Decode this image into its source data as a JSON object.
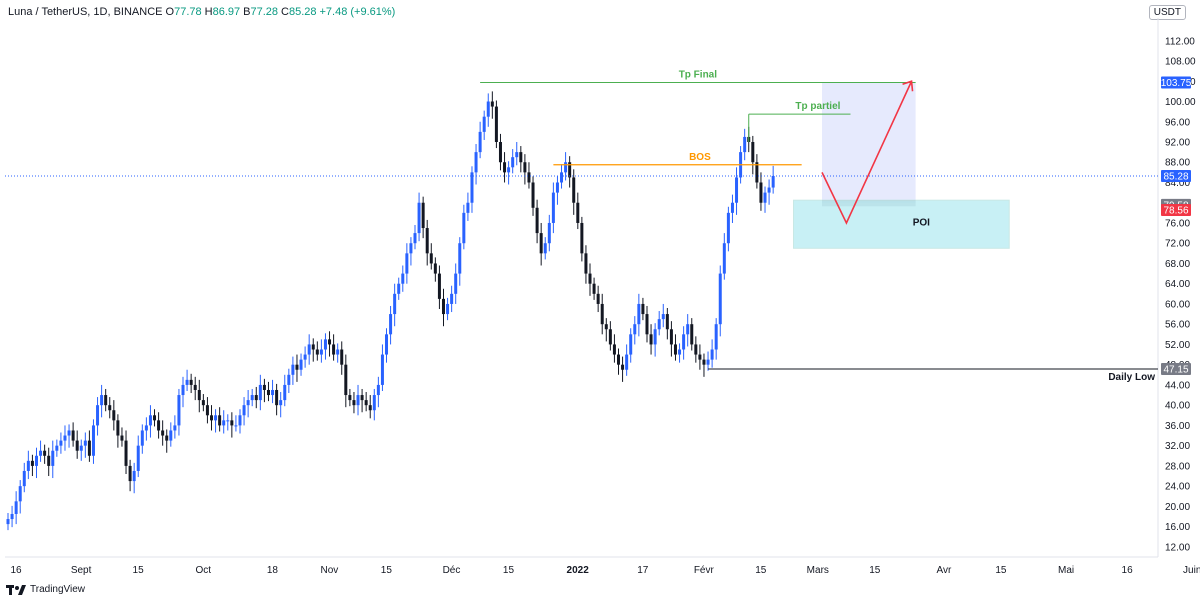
{
  "header": {
    "symbol": "Luna / TetherUS, 1D, BINANCE",
    "ohlc": [
      {
        "k": "O",
        "v": "77.78"
      },
      {
        "k": "H",
        "v": "86.97"
      },
      {
        "k": "B",
        "v": "77.28"
      },
      {
        "k": "C",
        "v": "85.28"
      },
      {
        "k": "",
        "v": "+7.48 (+9.61%)"
      }
    ]
  },
  "currency": "USDT",
  "brand": "TradingView",
  "colors": {
    "up": "#2962ff",
    "down": "#131722",
    "green": "#4caf50",
    "orange": "#ff9800",
    "red": "#f23645",
    "poi": "#b2ebf2",
    "target_zone": "#e3e8fd"
  },
  "chart_data": {
    "type": "candlestick",
    "y_axis": {
      "min": 10,
      "max": 116,
      "ticks": [
        12,
        16,
        20,
        24,
        28,
        32,
        36,
        40,
        44,
        48,
        52,
        56,
        60,
        64,
        68,
        72,
        76,
        80,
        84,
        88,
        92,
        96,
        100,
        104,
        108,
        112
      ]
    },
    "x_axis": {
      "labels": [
        {
          "t": "16",
          "d": 0
        },
        {
          "t": "Sept",
          "d": 16
        },
        {
          "t": "15",
          "d": 30
        },
        {
          "t": "Oct",
          "d": 46
        },
        {
          "t": "18",
          "d": 63
        },
        {
          "t": "Nov",
          "d": 77
        },
        {
          "t": "15",
          "d": 91
        },
        {
          "t": "Déc",
          "d": 107
        },
        {
          "t": "15",
          "d": 121
        },
        {
          "t": "2022",
          "d": 138
        },
        {
          "t": "17",
          "d": 154
        },
        {
          "t": "Févr",
          "d": 169
        },
        {
          "t": "15",
          "d": 183
        },
        {
          "t": "Mars",
          "d": 197
        },
        {
          "t": "15",
          "d": 211
        },
        {
          "t": "Avr",
          "d": 228
        },
        {
          "t": "15",
          "d": 242
        },
        {
          "t": "Mai",
          "d": 258
        },
        {
          "t": "16",
          "d": 273
        },
        {
          "t": "Juin",
          "d": 289
        }
      ]
    },
    "candles_note": "close prices per day, day index 0 = Aug 16",
    "closes": [
      17.5,
      18.5,
      21,
      24,
      27,
      29,
      28,
      30,
      31,
      30,
      28,
      31,
      32,
      33,
      34,
      35,
      33,
      31,
      32,
      33,
      30,
      36,
      40,
      42,
      40,
      39,
      37,
      34,
      33,
      28,
      25,
      27,
      32,
      35,
      36,
      38,
      37,
      35,
      34,
      33,
      35,
      36,
      42,
      44,
      45,
      44,
      43,
      41,
      40,
      38,
      37,
      38,
      36,
      37,
      37,
      36,
      36,
      38,
      40,
      41,
      42,
      41,
      44,
      43,
      42,
      43,
      40,
      41,
      44,
      46,
      48,
      47,
      49,
      50,
      52,
      51,
      50,
      51,
      53,
      52,
      50,
      51,
      48,
      42,
      41,
      40,
      42,
      41,
      40,
      39,
      42,
      44,
      50,
      54,
      58,
      62,
      64,
      66,
      70,
      72,
      74,
      80,
      75,
      70,
      68,
      66,
      61,
      58,
      60,
      62,
      66,
      72,
      78,
      80,
      86,
      90,
      94,
      97,
      100,
      99,
      92,
      88,
      86,
      87,
      89,
      90,
      88,
      86,
      84,
      79,
      74,
      70,
      72,
      76,
      82,
      84,
      86,
      88,
      85,
      80,
      76,
      70,
      66,
      64,
      62,
      60,
      56,
      55,
      52,
      50,
      48,
      47,
      50,
      54,
      56,
      60,
      58,
      54,
      52,
      55,
      57,
      58,
      55,
      52,
      50,
      51,
      54,
      56,
      52,
      50,
      49,
      48,
      49,
      51,
      56,
      66,
      72,
      78,
      80,
      85,
      90,
      93,
      92,
      88,
      84,
      80,
      82,
      83,
      85.28
    ],
    "levels": {
      "tp_final": {
        "label": "Tp Final",
        "price": 103.75,
        "from_day": 116
      },
      "tp_partiel": {
        "label": "Tp partiel",
        "price": 97.5,
        "from_day": 182
      },
      "bos": {
        "label": "BOS",
        "price": 87.5,
        "from_day": 134
      },
      "daily_low": {
        "label": "Daily Low",
        "price": 47.15,
        "from_day": 172
      },
      "poi": {
        "label": "POI",
        "top": 80.5,
        "bottom": 71
      }
    },
    "price_tags": [
      {
        "price": 103.75,
        "text": "103.75",
        "color": "#2962ff"
      },
      {
        "price": 85.28,
        "text": "85.28",
        "color": "#2962ff"
      },
      {
        "price": 79.58,
        "text": "79.58",
        "color": "#787b86"
      },
      {
        "price": 78.56,
        "text": "78.56",
        "color": "#f23645"
      },
      {
        "price": 47.15,
        "text": "47.15",
        "color": "#787b86"
      }
    ],
    "current_price": 85.28
  }
}
